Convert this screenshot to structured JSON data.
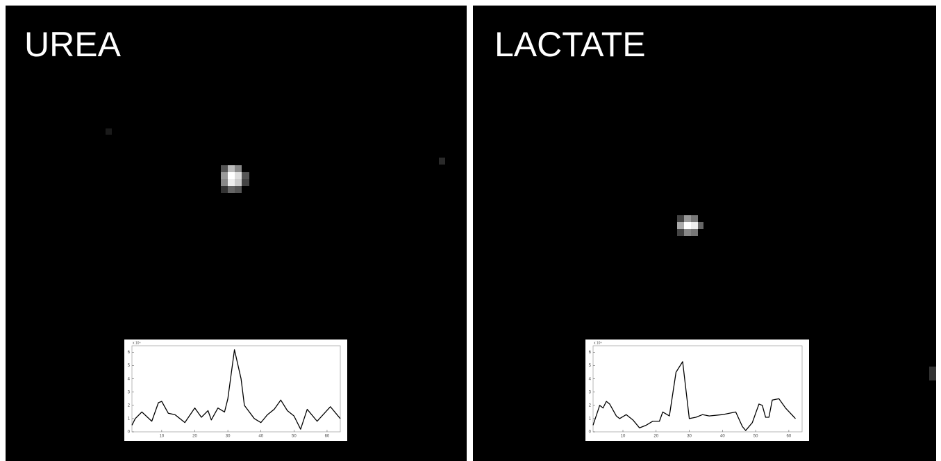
{
  "chart_data": [
    {
      "type": "line",
      "title": "UREA",
      "y_multiplier": "x 10⁴",
      "x": [
        1,
        2,
        4,
        7,
        9,
        10,
        12,
        14,
        17,
        20,
        22,
        24,
        25,
        27,
        29,
        30,
        32,
        34,
        35,
        38,
        40,
        42,
        44,
        46,
        48,
        50,
        52,
        54,
        57,
        61,
        64
      ],
      "series": [
        {
          "color": "#000000",
          "values": [
            0.5,
            1.0,
            1.5,
            0.8,
            2.2,
            2.3,
            1.4,
            1.3,
            0.7,
            1.8,
            1.1,
            1.6,
            0.9,
            1.8,
            1.5,
            2.5,
            6.2,
            4.0,
            2.0,
            1.0,
            0.7,
            1.3,
            1.7,
            2.4,
            1.6,
            1.2,
            0.2,
            1.7,
            0.8,
            1.9,
            1.0
          ]
        }
      ],
      "xlim": [
        1,
        64
      ],
      "ylim": [
        0,
        6.5
      ],
      "xticks": [
        10,
        20,
        30,
        40,
        50,
        60
      ],
      "yticks": [
        0,
        1,
        2,
        3,
        4,
        5,
        6
      ]
    },
    {
      "type": "line",
      "title": "LACTATE",
      "y_multiplier": "x 10⁴",
      "x": [
        1,
        3,
        4,
        5,
        6,
        8,
        9,
        11,
        13,
        15,
        17,
        19,
        21,
        22,
        24,
        26,
        28,
        30,
        32,
        34,
        36,
        40,
        44,
        46,
        47,
        49,
        51,
        52,
        53,
        54,
        55,
        57,
        59,
        62
      ],
      "series": [
        {
          "color": "#000000",
          "values": [
            0.5,
            2.0,
            1.8,
            2.3,
            2.1,
            1.2,
            1.0,
            1.3,
            0.9,
            0.3,
            0.5,
            0.8,
            0.8,
            1.5,
            1.2,
            4.5,
            5.3,
            1.0,
            1.1,
            1.3,
            1.2,
            1.3,
            1.5,
            0.4,
            0.1,
            0.7,
            2.1,
            2.0,
            1.1,
            1.1,
            2.4,
            2.5,
            1.8,
            1.0
          ]
        }
      ],
      "xlim": [
        1,
        64
      ],
      "ylim": [
        0,
        6.5
      ],
      "xticks": [
        10,
        20,
        30,
        40,
        50,
        60
      ],
      "yticks": [
        0,
        1,
        2,
        3,
        4,
        5,
        6
      ]
    }
  ]
}
